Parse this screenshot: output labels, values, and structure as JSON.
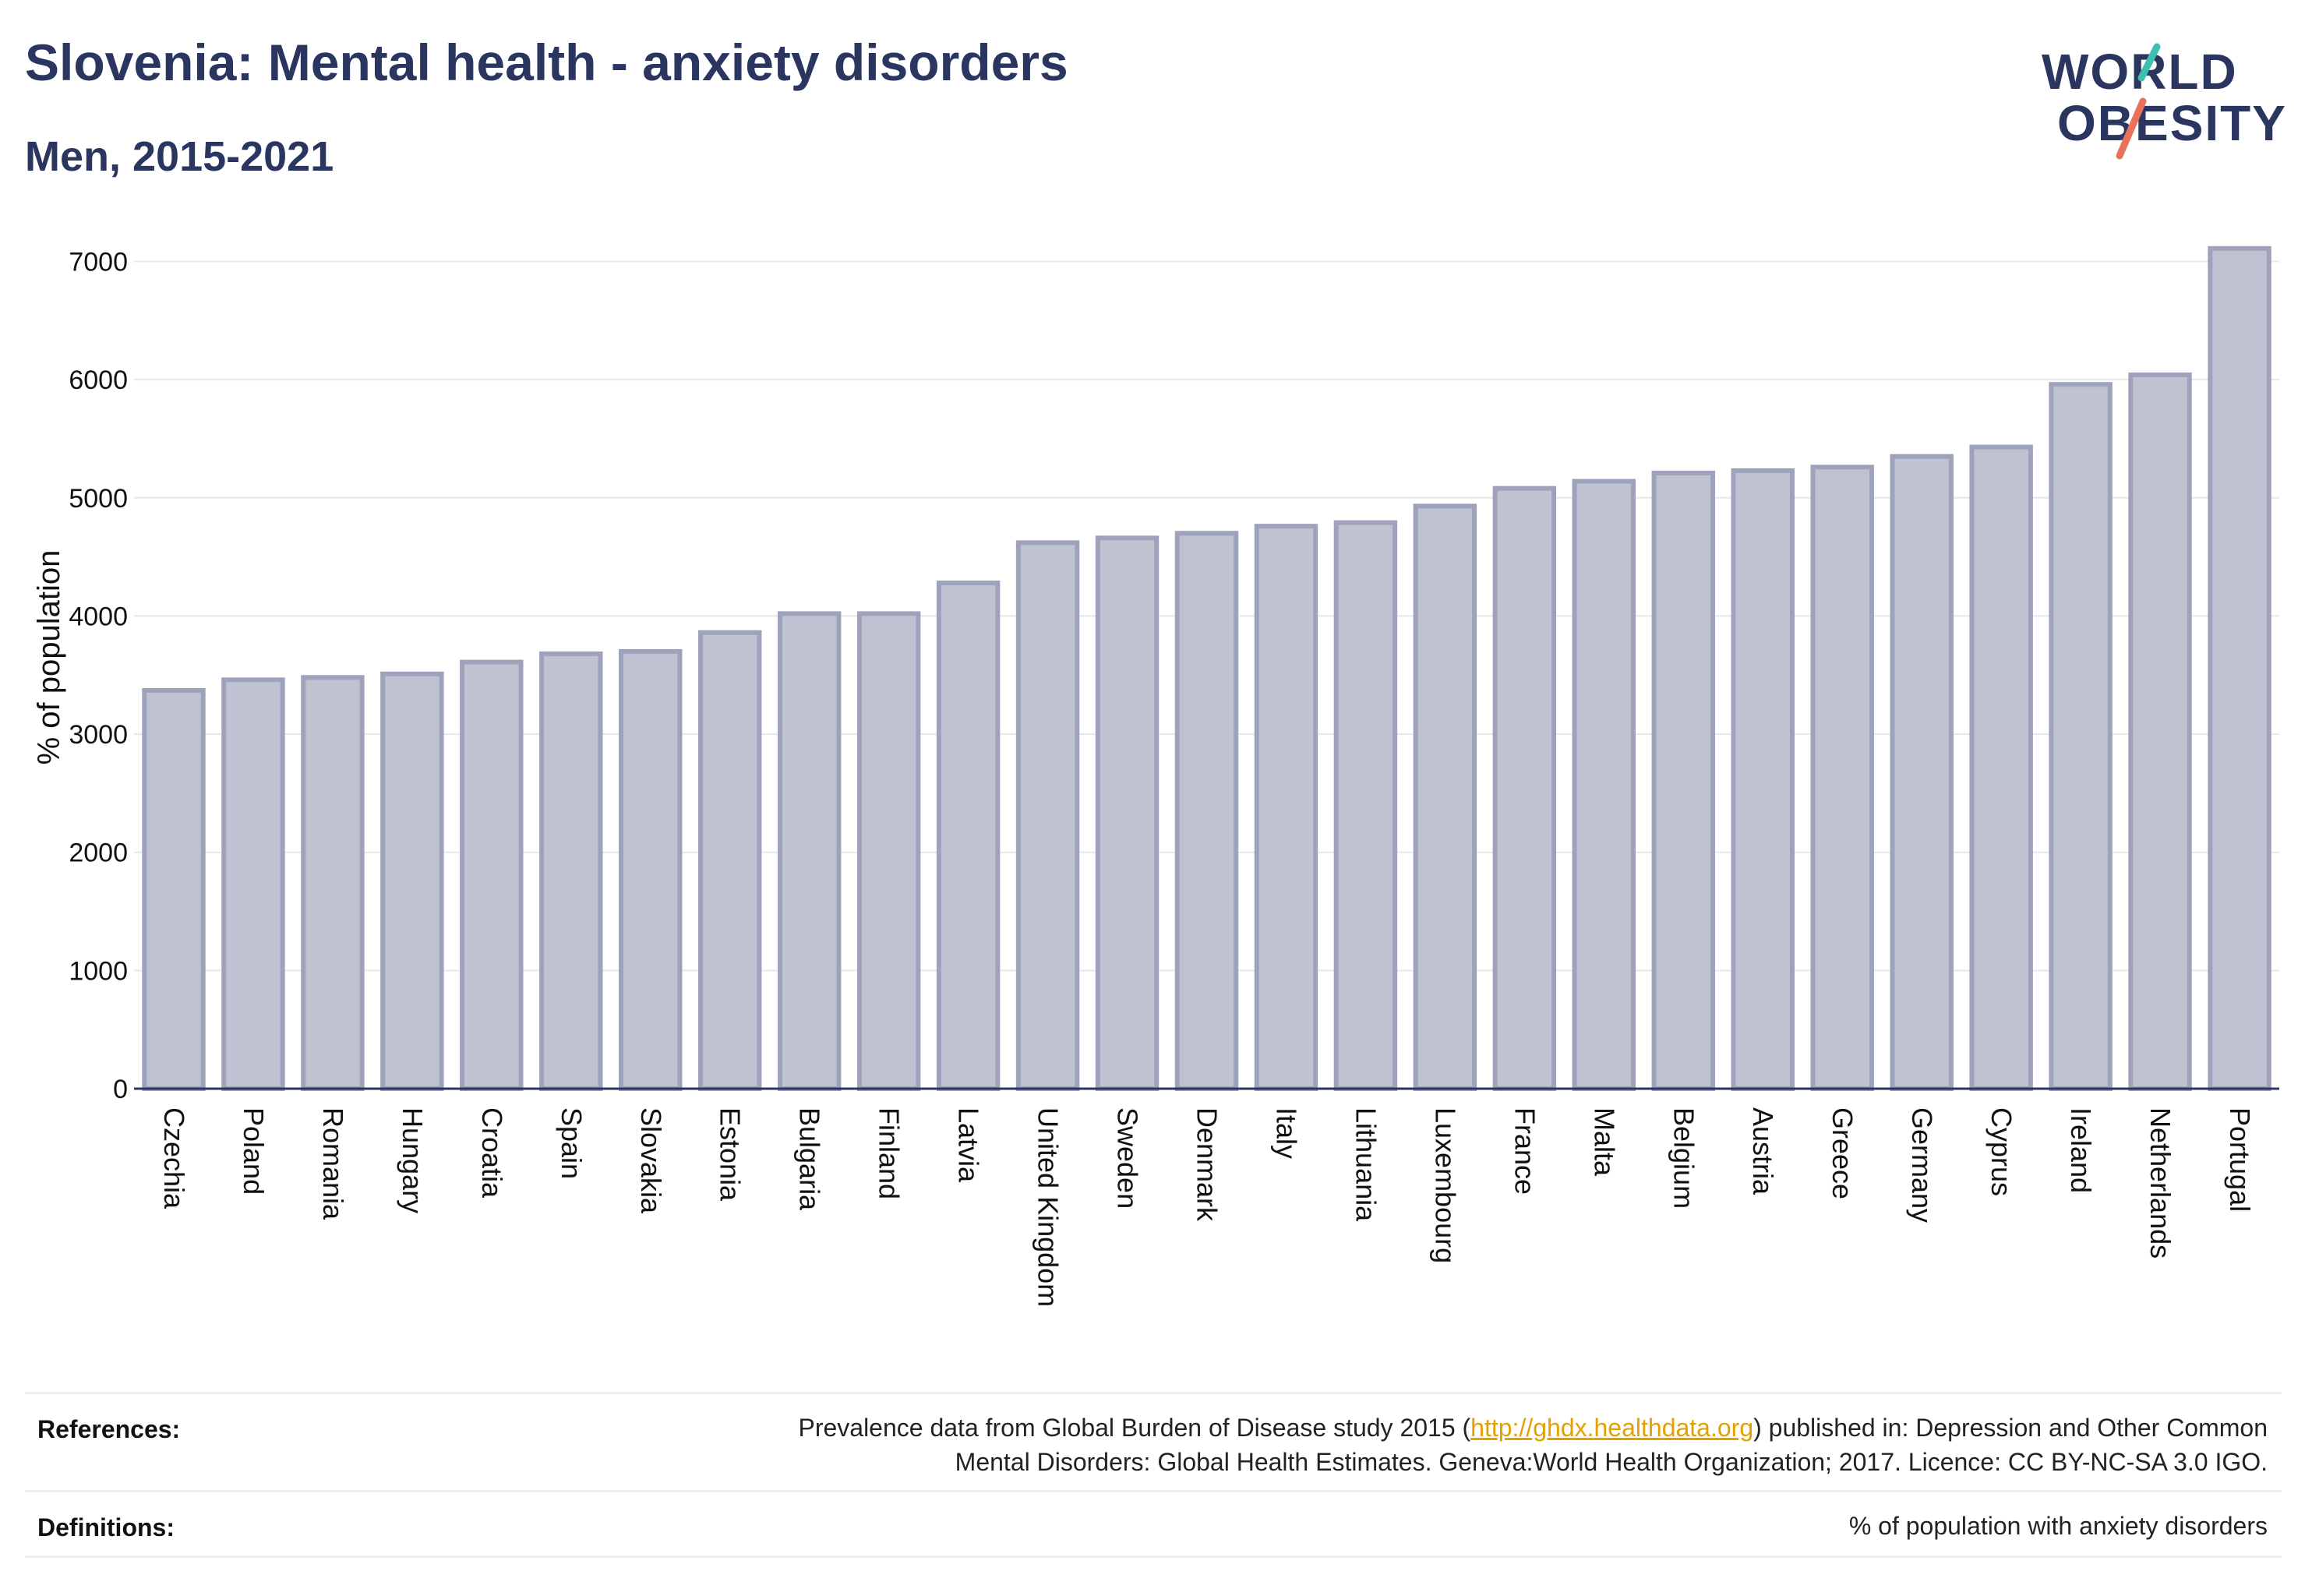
{
  "header": {
    "title": "Slovenia: Mental health - anxiety disorders",
    "subtitle": "Men, 2015-2021"
  },
  "logo": {
    "line1": "WORLD",
    "line2": "OBESITY",
    "slash_colors": [
      "#3fbfb0",
      "#e8735a"
    ]
  },
  "chart_data": {
    "type": "bar",
    "ylabel": "% of population",
    "xlabel": "",
    "ylim": [
      0,
      7300
    ],
    "yticks": [
      0,
      1000,
      2000,
      3000,
      4000,
      5000,
      6000,
      7000
    ],
    "grid": true,
    "bar_color": "#bfc2d1",
    "bar_edge_color": "#9ea3bb",
    "categories": [
      "Czechia",
      "Poland",
      "Romania",
      "Hungary",
      "Croatia",
      "Spain",
      "Slovakia",
      "Estonia",
      "Bulgaria",
      "Finland",
      "Latvia",
      "United Kingdom",
      "Sweden",
      "Denmark",
      "Italy",
      "Lithuania",
      "Luxembourg",
      "France",
      "Malta",
      "Belgium",
      "Austria",
      "Greece",
      "Germany",
      "Cyprus",
      "Ireland",
      "Netherlands",
      "Portugal"
    ],
    "values": [
      3370,
      3460,
      3480,
      3510,
      3610,
      3680,
      3700,
      3860,
      4020,
      4020,
      4280,
      4620,
      4660,
      4700,
      4760,
      4790,
      4930,
      5080,
      5140,
      5210,
      5230,
      5260,
      5350,
      5430,
      5960,
      6040,
      7110
    ]
  },
  "footer": {
    "references_label": "References:",
    "references_text_before": "Prevalence data from Global Burden of Disease study 2015 (",
    "references_link": "http://ghdx.healthdata.org",
    "references_text_after": ") published in: Depression and Other Common",
    "references_text_line2": "Mental Disorders: Global Health Estimates. Geneva:World Health Organization; 2017. Licence: CC BY-NC-SA 3.0 IGO.",
    "definitions_label": "Definitions:",
    "definitions_text": "% of population with anxiety disorders"
  }
}
